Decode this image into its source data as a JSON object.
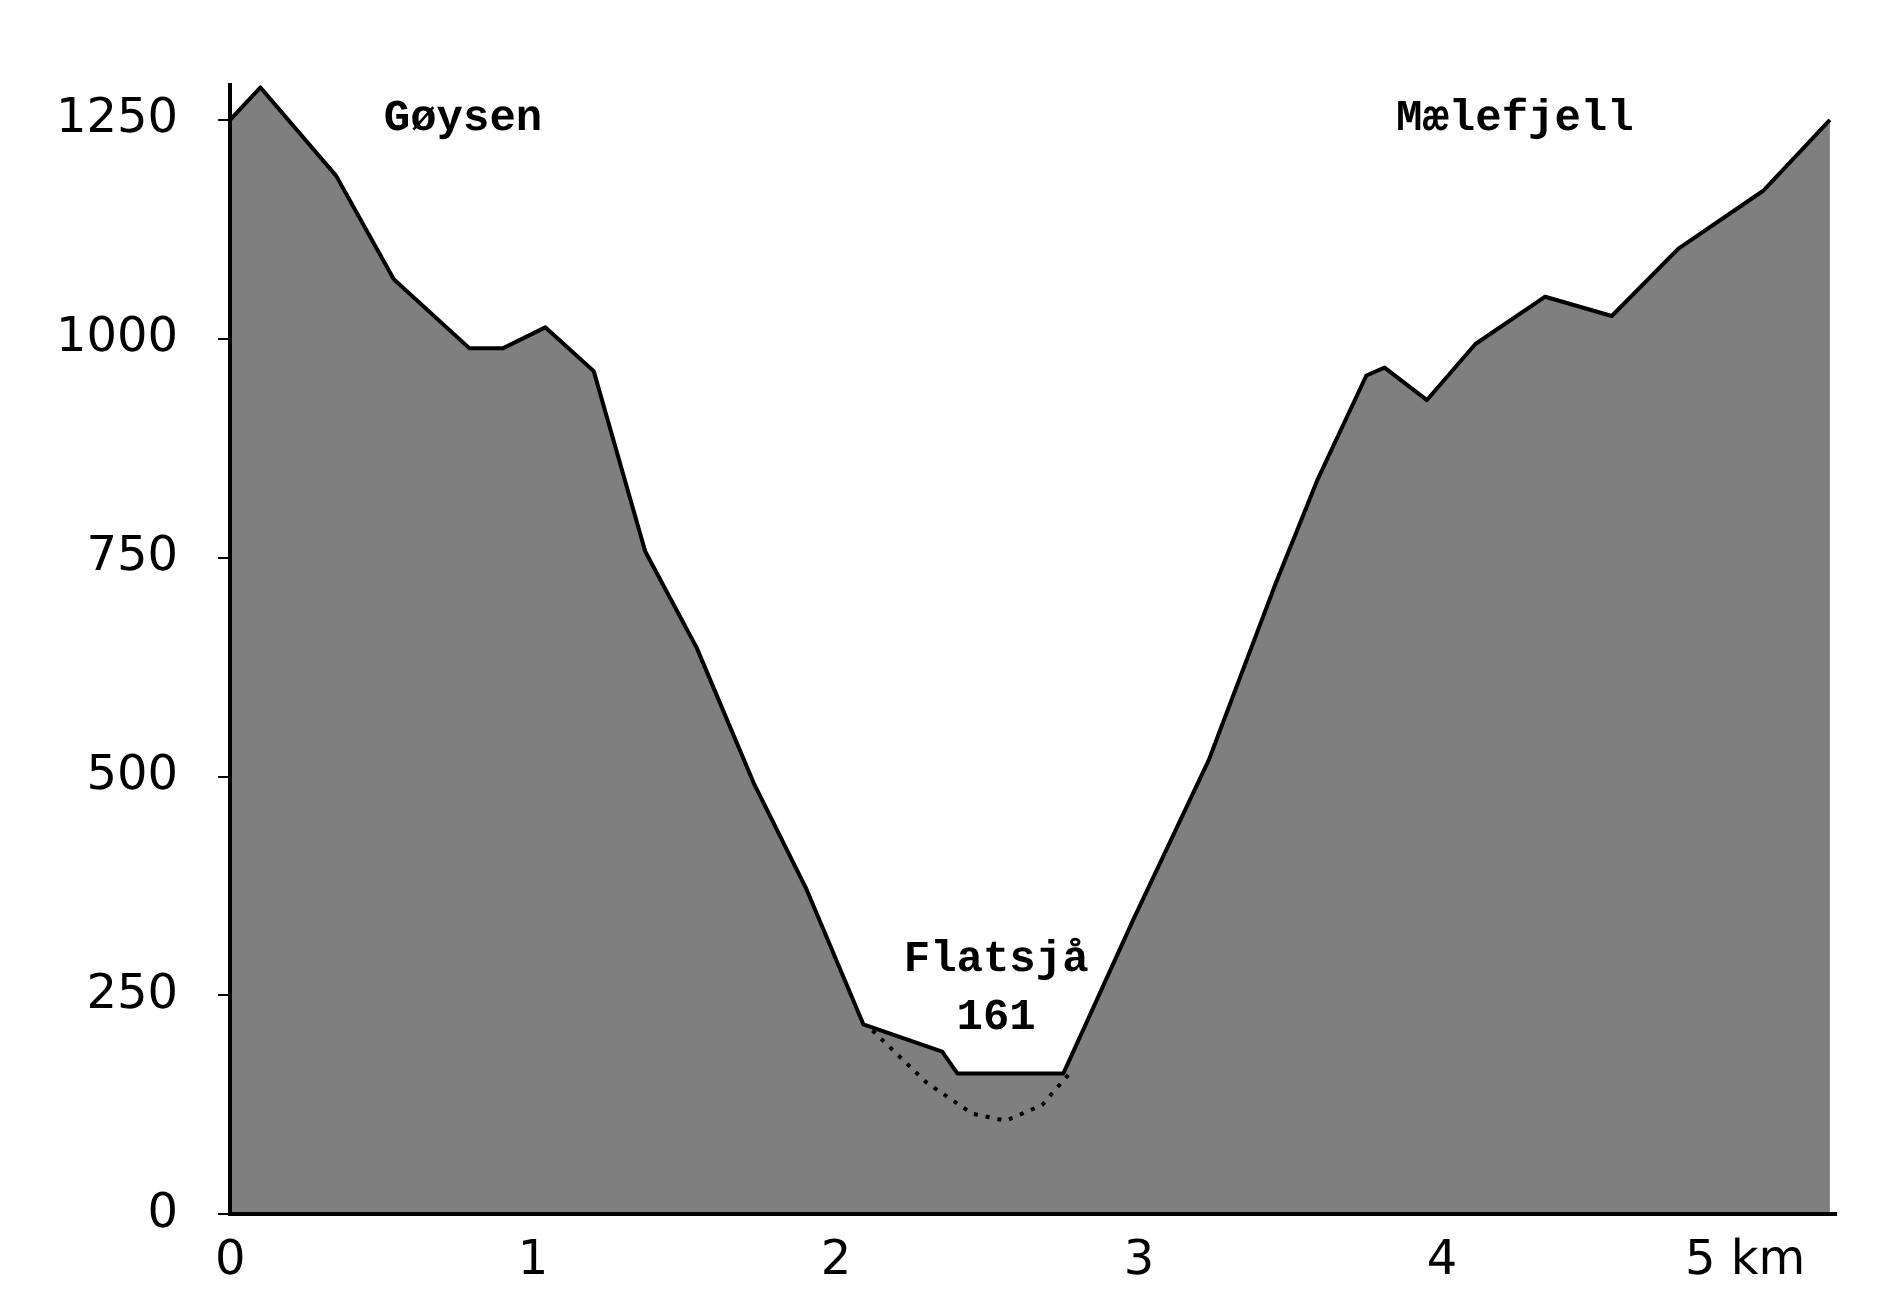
{
  "chart_data": {
    "type": "area",
    "x": [
      0,
      0.1,
      0.35,
      0.54,
      0.79,
      0.9,
      1.04,
      1.2,
      1.37,
      1.54,
      1.73,
      1.9,
      2.09,
      2.35,
      2.4,
      2.75,
      2.98,
      3.23,
      3.45,
      3.59,
      3.75,
      3.81,
      3.95,
      4.11,
      4.34,
      4.56,
      4.78,
      5.06,
      5.28
    ],
    "series": [
      {
        "color": "#000000",
        "values": [
          1250,
          1287,
          1186,
          1068,
          989,
          989,
          1013,
          963,
          757,
          647,
          491,
          373,
          217,
          186,
          161,
          161,
          336,
          519,
          720,
          840,
          958,
          967,
          930,
          994,
          1048,
          1026,
          1103,
          1169,
          1250
        ]
      },
      {
        "type": "line",
        "line_style": "dotted",
        "color": "#000000",
        "x": [
          2.12,
          2.3,
          2.45,
          2.56,
          2.68,
          2.78
        ],
        "values": [
          210,
          150,
          115,
          107,
          125,
          165
        ]
      }
    ],
    "xlim": [
      0,
      5.3
    ],
    "ylim": [
      0,
      1290
    ],
    "xticks": [
      0,
      1,
      2,
      3,
      4,
      {
        "value": 5,
        "label": "5 km"
      }
    ],
    "yticks": [
      0,
      250,
      500,
      750,
      1000,
      1250
    ],
    "grid": false,
    "legend": false,
    "marker": "none",
    "line_style": "solid",
    "annotations": [
      "Gøysen",
      "Mælefjell",
      "Flatsjå",
      "161"
    ]
  }
}
